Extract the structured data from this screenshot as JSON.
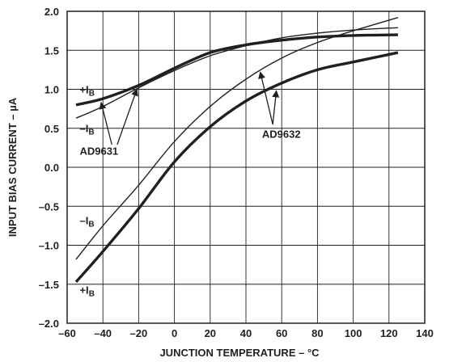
{
  "chart_data": {
    "type": "line",
    "xlabel": "JUNCTION TEMPERATURE – °C",
    "ylabel": "INPUT BIAS CURRENT – µA",
    "xlim": [
      -60,
      140
    ],
    "ylim": [
      -2.0,
      2.0
    ],
    "x_ticks": [
      -60,
      -40,
      -20,
      0,
      20,
      40,
      60,
      80,
      100,
      120,
      140
    ],
    "y_ticks": [
      -2.0,
      -1.5,
      -1.0,
      -0.5,
      0.0,
      0.5,
      1.0,
      1.5,
      2.0
    ],
    "x_tick_labels": [
      "–60",
      "–40",
      "–20",
      "0",
      "20",
      "40",
      "60",
      "80",
      "100",
      "120",
      "140"
    ],
    "y_tick_labels": [
      "–2.0",
      "–1.5",
      "–1.0",
      "–0.5",
      "0.0",
      "0.5",
      "1.0",
      "1.5",
      "2.0"
    ],
    "grid": true,
    "series": [
      {
        "weight": "thick",
        "x": [
          -55,
          -40,
          -20,
          0,
          20,
          40,
          60,
          80,
          100,
          125
        ],
        "y": [
          0.8,
          0.88,
          1.05,
          1.27,
          1.47,
          1.57,
          1.63,
          1.67,
          1.69,
          1.7
        ]
      },
      {
        "weight": "thin",
        "x": [
          -55,
          -40,
          -20,
          0,
          20,
          40,
          60,
          80,
          100,
          125
        ],
        "y": [
          0.63,
          0.78,
          1.02,
          1.24,
          1.43,
          1.56,
          1.66,
          1.72,
          1.76,
          1.79
        ]
      },
      {
        "weight": "thin",
        "x": [
          -55,
          -40,
          -20,
          0,
          20,
          40,
          60,
          80,
          100,
          125
        ],
        "y": [
          -1.18,
          -0.75,
          -0.23,
          0.33,
          0.78,
          1.13,
          1.4,
          1.6,
          1.75,
          1.92
        ]
      },
      {
        "weight": "thick",
        "x": [
          -55,
          -40,
          -20,
          0,
          20,
          40,
          60,
          80,
          100,
          125
        ],
        "y": [
          -1.47,
          -1.08,
          -0.53,
          0.07,
          0.52,
          0.85,
          1.08,
          1.25,
          1.35,
          1.47
        ]
      }
    ],
    "annotations": [
      {
        "id": "ib-plus-ad9631",
        "main": "+I",
        "sub": "B",
        "x": -53,
        "y": 0.95
      },
      {
        "id": "ib-minus-ad9631",
        "main": "–I",
        "sub": "B",
        "x": -53,
        "y": 0.45
      },
      {
        "id": "ib-minus-ad9632",
        "main": "–I",
        "sub": "B",
        "x": -53,
        "y": -0.73
      },
      {
        "id": "ib-plus-ad9632",
        "main": "+I",
        "sub": "B",
        "x": -53,
        "y": -1.62
      },
      {
        "id": "ad9631-label",
        "main": "AD9631",
        "sub": "",
        "x": -53,
        "y": 0.16
      },
      {
        "id": "ad9632-label",
        "main": "AD9632",
        "sub": "",
        "x": 49,
        "y": 0.38
      }
    ],
    "arrows": [
      {
        "id": "arrow-ad9631-a",
        "from": [
          -35,
          0.29
        ],
        "to": [
          -41,
          0.83
        ]
      },
      {
        "id": "arrow-ad9631-b",
        "from": [
          -32,
          0.29
        ],
        "to": [
          -21,
          1.0
        ]
      },
      {
        "id": "arrow-ad9632-a",
        "from": [
          55,
          0.55
        ],
        "to": [
          48,
          1.22
        ]
      },
      {
        "id": "arrow-ad9632-b",
        "from": [
          55,
          0.55
        ],
        "to": [
          57,
          0.98
        ]
      }
    ]
  }
}
